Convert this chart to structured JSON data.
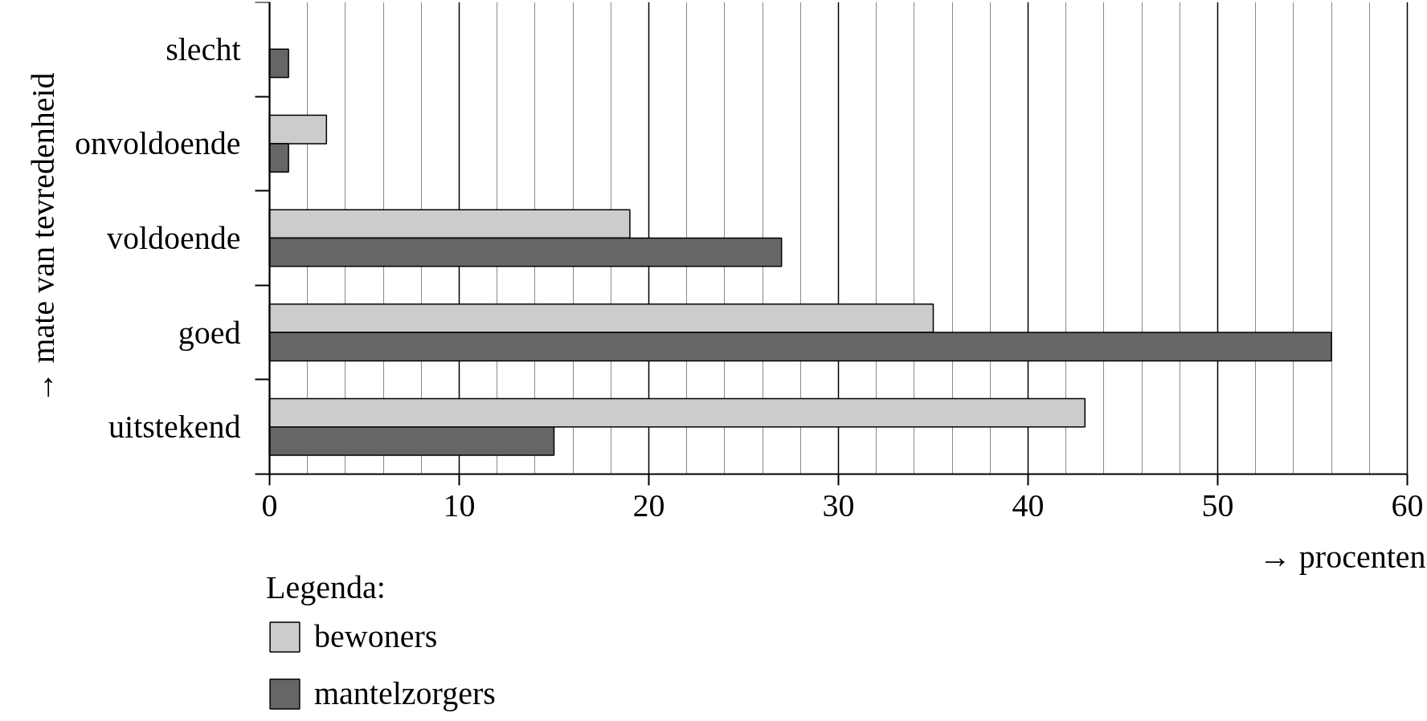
{
  "chart_data": {
    "type": "bar",
    "orientation": "horizontal",
    "categories": [
      "slecht",
      "onvoldoende",
      "voldoende",
      "goed",
      "uitstekend"
    ],
    "series": [
      {
        "name": "bewoners",
        "color": "#cccccc",
        "values": [
          null,
          3,
          19,
          35,
          43
        ]
      },
      {
        "name": "mantelzorgers",
        "color": "#666666",
        "values": [
          1,
          1,
          27,
          56,
          15
        ]
      }
    ],
    "xlabel": "→ procenten",
    "ylabel": "→ mate van tevredenheid",
    "legend_title": "Legenda:",
    "xlim": [
      0,
      60
    ],
    "xticks": [
      0,
      {
        "value": 2,
        "label": null
      },
      {
        "value": 4,
        "label": null
      },
      {
        "value": 6,
        "label": null
      },
      {
        "value": 8,
        "label": null
      },
      10,
      {
        "value": 12,
        "label": null
      },
      {
        "value": 14,
        "label": null
      },
      {
        "value": 16,
        "label": null
      },
      {
        "value": 18,
        "label": null
      },
      20,
      {
        "value": 22,
        "label": null
      },
      {
        "value": 24,
        "label": null
      },
      {
        "value": 26,
        "label": null
      },
      {
        "value": 28,
        "label": null
      },
      30,
      {
        "value": 32,
        "label": null
      },
      {
        "value": 34,
        "label": null
      },
      {
        "value": 36,
        "label": null
      },
      {
        "value": 38,
        "label": null
      },
      40,
      {
        "value": 42,
        "label": null
      },
      {
        "value": 44,
        "label": null
      },
      {
        "value": 46,
        "label": null
      },
      {
        "value": 48,
        "label": null
      },
      50,
      {
        "value": 52,
        "label": null
      },
      {
        "value": 54,
        "label": null
      },
      {
        "value": 56,
        "label": null
      },
      {
        "value": 58,
        "label": null
      },
      60
    ],
    "grid": "x",
    "legend": "bottom left"
  }
}
